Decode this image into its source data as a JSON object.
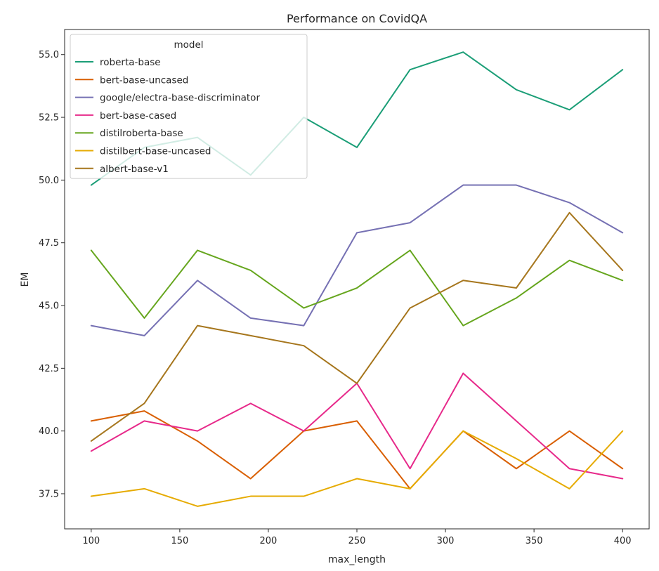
{
  "chart_data": {
    "type": "line",
    "title": "Performance on CovidQA",
    "xlabel": "max_length",
    "ylabel": "EM",
    "x": [
      100,
      130,
      160,
      190,
      220,
      250,
      280,
      310,
      340,
      370,
      400
    ],
    "xticks": [
      100,
      150,
      200,
      250,
      300,
      350,
      400
    ],
    "yticks": [
      37.5,
      40.0,
      42.5,
      45.0,
      47.5,
      50.0,
      52.5,
      55.0
    ],
    "xlim": [
      85,
      415
    ],
    "ylim": [
      36.1,
      56.0
    ],
    "grid": false,
    "legend": {
      "title": "model",
      "placement": "top-left"
    },
    "series": [
      {
        "name": "roberta-base",
        "color": "#1b9e77",
        "values": [
          49.8,
          51.3,
          51.7,
          50.2,
          52.5,
          51.3,
          54.4,
          55.1,
          53.6,
          52.8,
          54.4
        ]
      },
      {
        "name": "bert-base-uncased",
        "color": "#d95f02",
        "values": [
          40.4,
          40.8,
          39.6,
          38.1,
          40.0,
          40.4,
          37.7,
          40.0,
          38.5,
          40.0,
          38.5
        ]
      },
      {
        "name": "google/electra-base-discriminator",
        "color": "#7570b3",
        "values": [
          44.2,
          43.8,
          46.0,
          44.5,
          44.2,
          47.9,
          48.3,
          49.8,
          49.8,
          49.1,
          47.9
        ]
      },
      {
        "name": "bert-base-cased",
        "color": "#e7298a",
        "values": [
          39.2,
          40.4,
          40.0,
          41.1,
          40.0,
          41.9,
          38.5,
          42.3,
          40.4,
          38.5,
          38.1
        ]
      },
      {
        "name": "distilroberta-base",
        "color": "#66a61e",
        "values": [
          47.2,
          44.5,
          47.2,
          46.4,
          44.9,
          45.7,
          47.2,
          44.2,
          45.3,
          46.8,
          46.0
        ]
      },
      {
        "name": "distilbert-base-uncased",
        "color": "#e6ab02",
        "values": [
          37.4,
          37.7,
          37.0,
          37.4,
          37.4,
          38.1,
          37.7,
          40.0,
          38.9,
          37.7,
          40.0
        ]
      },
      {
        "name": "albert-base-v1",
        "color": "#a6761d",
        "values": [
          39.6,
          41.1,
          44.2,
          43.8,
          43.4,
          41.9,
          44.9,
          46.0,
          45.7,
          48.7,
          46.4
        ]
      }
    ]
  }
}
